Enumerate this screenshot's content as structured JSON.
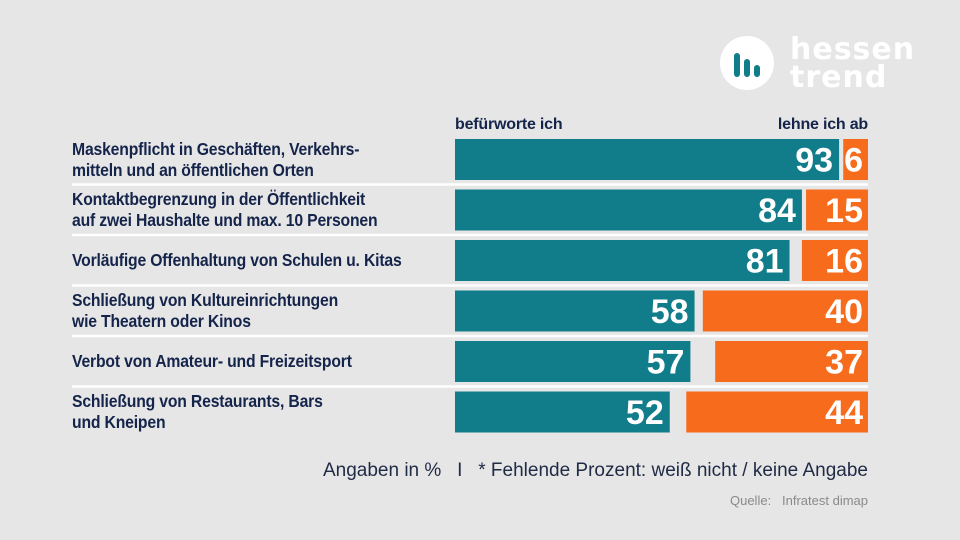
{
  "brand": {
    "line1": "hessen",
    "line2": "trend",
    "icon": "bars-icon"
  },
  "legend": {
    "approve": "befürworte ich",
    "reject": "lehne ich ab"
  },
  "footnote": "Angaben in %   I   * Fehlende Prozent: weiß nicht / keine Angabe",
  "source": "Quelle:   Infratest dimap",
  "colors": {
    "approve": "#117c8a",
    "reject": "#f76b1c",
    "divider": "#ffffff",
    "background": "#e6e6e6"
  },
  "chart_data": {
    "type": "bar",
    "orientation": "horizontal",
    "stacked": true,
    "title": "",
    "xlim": [
      0,
      100
    ],
    "categories": [
      "Maskenpflicht in Geschäften, Verkehrs-\nmitteln und an öffentlichen Orten",
      "Kontaktbegrenzung in der Öffentlichkeit\nauf zwei Haushalte und max. 10 Personen",
      "Vorläufige Offenhaltung von Schulen u. Kitas",
      "Schließung von Kultureinrichtungen\nwie Theatern oder Kinos",
      "Verbot von Amateur- und Freizeitsport",
      "Schließung von Restaurants, Bars\nund Kneipen"
    ],
    "series": [
      {
        "name": "befürworte ich",
        "values": [
          93,
          84,
          81,
          58,
          57,
          52
        ]
      },
      {
        "name": "lehne ich ab",
        "values": [
          6,
          15,
          16,
          40,
          37,
          44
        ]
      }
    ]
  }
}
